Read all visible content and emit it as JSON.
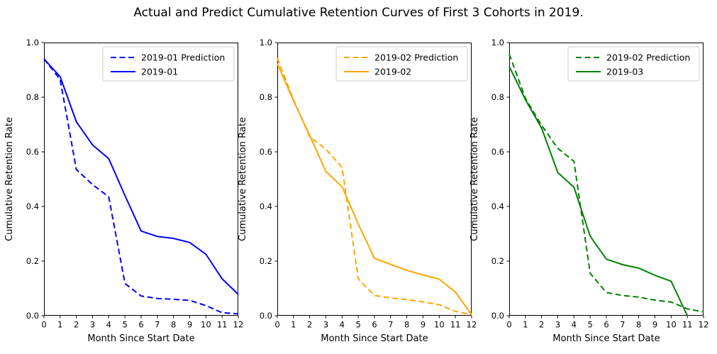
{
  "figure": {
    "title": "Actual and Predict Cumulative Retention Curves of First 3 Cohorts in 2019.",
    "background_color": "#ffffff",
    "text_color": "#000000"
  },
  "chart_data": [
    {
      "type": "line",
      "panel": "first-cohort",
      "xlabel": "Month Since Start Date",
      "ylabel": "Cumulative Retention Rate",
      "xlim": [
        0,
        12
      ],
      "ylim": [
        0.0,
        1.0
      ],
      "xticks": [
        0,
        1,
        2,
        3,
        4,
        5,
        6,
        7,
        8,
        9,
        10,
        11,
        12
      ],
      "yticks": [
        0.0,
        0.2,
        0.4,
        0.6,
        0.8,
        1.0
      ],
      "grid": false,
      "legend_position": "upper right",
      "color": "#0000ff",
      "series": [
        {
          "name": "2019-01 Prediction",
          "style": "dashed",
          "x": [
            0,
            1,
            2,
            3,
            4,
            5,
            6,
            7,
            8,
            9,
            10,
            11,
            12
          ],
          "y": [
            0.94,
            0.865,
            0.535,
            0.48,
            0.435,
            0.118,
            0.072,
            0.063,
            0.06,
            0.056,
            0.037,
            0.011,
            0.007
          ]
        },
        {
          "name": "2019-01",
          "style": "solid",
          "x": [
            0,
            1,
            2,
            3,
            4,
            5,
            6,
            7,
            8,
            9,
            10,
            11,
            12
          ],
          "y": [
            0.94,
            0.875,
            0.71,
            0.625,
            0.575,
            0.44,
            0.31,
            0.29,
            0.283,
            0.268,
            0.225,
            0.135,
            0.078
          ]
        }
      ]
    },
    {
      "type": "line",
      "panel": "second-cohort",
      "xlabel": "Month Since Start Date",
      "ylabel": "Cumulative Retention Rate",
      "xlim": [
        0,
        12
      ],
      "ylim": [
        0.0,
        1.0
      ],
      "xticks": [
        0,
        1,
        2,
        3,
        4,
        5,
        6,
        7,
        8,
        9,
        10,
        11,
        12
      ],
      "yticks": [
        0.0,
        0.2,
        0.4,
        0.6,
        0.8,
        1.0
      ],
      "grid": false,
      "legend_position": "upper right",
      "color": "#ffa500",
      "series": [
        {
          "name": "2019-02 Prediction",
          "style": "dashed",
          "x": [
            0,
            1,
            2,
            3,
            4,
            5,
            6,
            7,
            8,
            9,
            10,
            11,
            12
          ],
          "y": [
            0.943,
            0.79,
            0.655,
            0.61,
            0.543,
            0.135,
            0.074,
            0.065,
            0.059,
            0.051,
            0.04,
            0.016,
            0.004
          ]
        },
        {
          "name": "2019-02",
          "style": "solid",
          "x": [
            0,
            1,
            2,
            3,
            4,
            5,
            6,
            7,
            8,
            9,
            10,
            11,
            12
          ],
          "y": [
            0.923,
            0.787,
            0.66,
            0.528,
            0.472,
            0.335,
            0.21,
            0.188,
            0.166,
            0.149,
            0.134,
            0.086,
            0.004
          ]
        }
      ]
    },
    {
      "type": "line",
      "panel": "third-cohort",
      "xlabel": "Month Since Start Date",
      "ylabel": "Cumulative Retention Rate",
      "xlim": [
        0,
        12
      ],
      "ylim": [
        0.0,
        1.0
      ],
      "xticks": [
        0,
        1,
        2,
        3,
        4,
        5,
        6,
        7,
        8,
        9,
        10,
        11,
        12
      ],
      "yticks": [
        0.0,
        0.2,
        0.4,
        0.6,
        0.8,
        1.0
      ],
      "grid": false,
      "legend_position": "upper right",
      "color": "#008000",
      "series": [
        {
          "name": "2019-02 Prediction",
          "style": "dashed",
          "x": [
            0,
            1,
            2,
            3,
            4,
            5,
            6,
            7,
            8,
            9,
            10,
            11,
            12
          ],
          "y": [
            0.958,
            0.796,
            0.697,
            0.613,
            0.565,
            0.155,
            0.085,
            0.074,
            0.068,
            0.057,
            0.05,
            0.025,
            0.014
          ]
        },
        {
          "name": "2019-03",
          "style": "solid",
          "x": [
            0,
            1,
            2,
            3,
            4,
            5,
            6,
            7,
            8,
            9,
            10,
            11
          ],
          "y": [
            0.913,
            0.791,
            0.687,
            0.524,
            0.47,
            0.291,
            0.207,
            0.187,
            0.174,
            0.148,
            0.126,
            0.0
          ]
        }
      ]
    }
  ]
}
